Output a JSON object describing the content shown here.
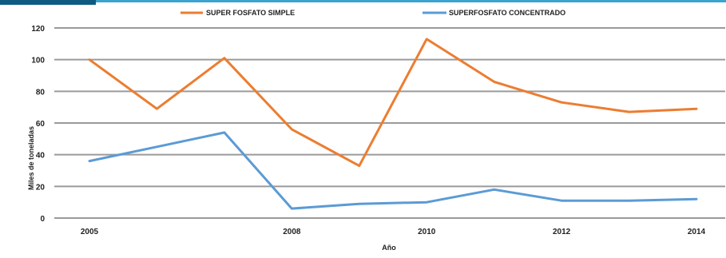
{
  "colors": {
    "header_dark": "#0f5a80",
    "header_line": "#3aa3cf",
    "grid": "#9a9a9a",
    "simple": "#ec7d31",
    "concentrado": "#5b9bd5"
  },
  "chart_data": {
    "type": "line",
    "xlabel": "Año",
    "ylabel": "Miles de toneladas",
    "ylim": [
      0,
      120
    ],
    "yticks": [
      0,
      20,
      40,
      60,
      80,
      100,
      120
    ],
    "xlim": [
      2005,
      2014
    ],
    "xticks": [
      2005,
      2008,
      2010,
      2012,
      2014
    ],
    "grid": true,
    "legend_position": "top",
    "series": [
      {
        "name": "SUPER FOSFATO SIMPLE",
        "color": "#ec7d31",
        "x": [
          2005,
          2006,
          2007,
          2008,
          2009,
          2010,
          2011,
          2012,
          2013,
          2014
        ],
        "values": [
          100,
          69,
          101,
          56,
          33,
          113,
          86,
          73,
          67,
          69
        ]
      },
      {
        "name": "SUPERFOSFATO CONCENTRADO",
        "color": "#5b9bd5",
        "x": [
          2005,
          2006,
          2007,
          2008,
          2009,
          2010,
          2011,
          2012,
          2013,
          2014
        ],
        "values": [
          36,
          45,
          54,
          6,
          9,
          10,
          18,
          11,
          11,
          12
        ]
      }
    ]
  }
}
